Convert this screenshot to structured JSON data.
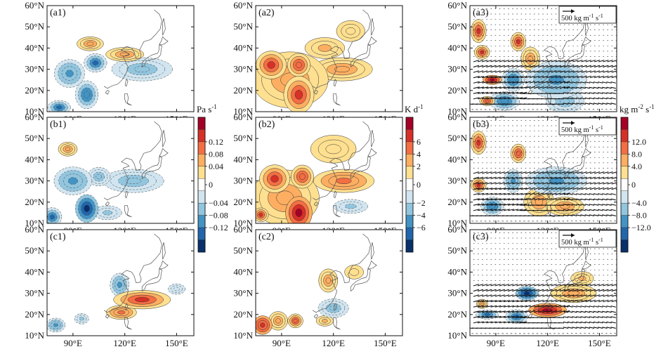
{
  "chart_data": {
    "type": "heatmap",
    "grid": "3x3 panels",
    "map": {
      "lon_range": [
        75,
        160
      ],
      "lat_range": [
        10,
        60
      ],
      "lat_ticks": [
        "60°N",
        "50°N",
        "40°N",
        "30°N",
        "20°N",
        "10°N"
      ],
      "lon_ticks": [
        "90°E",
        "120°E",
        "150°E"
      ]
    },
    "panels": [
      {
        "label": "(a1)",
        "field": "vertical_velocity",
        "blobs": [
          [
            103,
            33,
            6,
            4,
            -0.09
          ],
          [
            88,
            28,
            8,
            6,
            -0.06
          ],
          [
            98,
            18,
            6,
            6,
            -0.08
          ],
          [
            130,
            30,
            16,
            5,
            -0.04
          ],
          [
            120,
            37,
            10,
            3,
            0.05
          ],
          [
            100,
            42,
            7,
            3,
            0.04
          ],
          [
            82,
            12,
            6,
            3,
            -0.1
          ]
        ]
      },
      {
        "label": "(a2)",
        "field": "heating",
        "blobs": [
          [
            100,
            18,
            8,
            8,
            5
          ],
          [
            84,
            32,
            8,
            6,
            5
          ],
          [
            100,
            32,
            6,
            5,
            4
          ],
          [
            125,
            30,
            16,
            5,
            2
          ],
          [
            115,
            40,
            14,
            6,
            1.5
          ],
          [
            95,
            25,
            20,
            12,
            2.5
          ],
          [
            130,
            48,
            10,
            6,
            1
          ]
        ]
      },
      {
        "label": "(a3)",
        "field": "moisture_flux_divergence",
        "vectors": true,
        "blobs": [
          [
            80,
            48,
            4,
            5,
            10
          ],
          [
            82,
            38,
            4,
            3,
            9
          ],
          [
            103,
            43,
            4,
            4,
            10
          ],
          [
            88,
            25,
            5,
            2,
            12
          ],
          [
            110,
            35,
            5,
            5,
            5
          ],
          [
            95,
            15,
            8,
            4,
            -8
          ],
          [
            125,
            25,
            16,
            8,
            -6
          ],
          [
            130,
            15,
            10,
            5,
            -5
          ],
          [
            85,
            15,
            4,
            2,
            8
          ],
          [
            100,
            25,
            6,
            5,
            -8
          ]
        ]
      },
      {
        "label": "(b1)",
        "field": "vertical_velocity",
        "blobs": [
          [
            98,
            17,
            6,
            6,
            -0.12
          ],
          [
            90,
            30,
            10,
            6,
            -0.06
          ],
          [
            105,
            32,
            6,
            4,
            -0.05
          ],
          [
            78,
            13,
            5,
            4,
            -0.1
          ],
          [
            87,
            45,
            5,
            3,
            0.05
          ],
          [
            125,
            30,
            16,
            5,
            -0.04
          ],
          [
            110,
            15,
            10,
            4,
            -0.03
          ]
        ]
      },
      {
        "label": "(b2)",
        "field": "heating",
        "blobs": [
          [
            100,
            15,
            7,
            7,
            6.5
          ],
          [
            86,
            31,
            8,
            6,
            5
          ],
          [
            102,
            32,
            6,
            5,
            4
          ],
          [
            126,
            30,
            16,
            5,
            3
          ],
          [
            92,
            22,
            18,
            12,
            2.5
          ],
          [
            120,
            45,
            16,
            8,
            1
          ],
          [
            130,
            18,
            12,
            4,
            -1.5
          ],
          [
            78,
            14,
            4,
            3,
            5
          ]
        ]
      },
      {
        "label": "(b3)",
        "field": "moisture_flux_divergence",
        "vectors": true,
        "blobs": [
          [
            80,
            48,
            4,
            5,
            10
          ],
          [
            80,
            28,
            4,
            3,
            10
          ],
          [
            103,
            43,
            4,
            4,
            8
          ],
          [
            88,
            18,
            6,
            4,
            -8
          ],
          [
            125,
            30,
            16,
            6,
            -6
          ],
          [
            100,
            30,
            5,
            5,
            -6
          ],
          [
            130,
            18,
            10,
            4,
            5
          ],
          [
            115,
            20,
            8,
            6,
            4
          ]
        ]
      },
      {
        "label": "(c1)",
        "field": "vertical_velocity",
        "blobs": [
          [
            130,
            27,
            15,
            4,
            0.09
          ],
          [
            118,
            21,
            8,
            3,
            0.06
          ],
          [
            117,
            34,
            5,
            5,
            -0.06
          ],
          [
            80,
            15,
            5,
            3,
            -0.06
          ],
          [
            95,
            18,
            5,
            3,
            -0.03
          ],
          [
            150,
            32,
            6,
            3,
            -0.02
          ]
        ]
      },
      {
        "label": "(c2)",
        "field": "heating",
        "blobs": [
          [
            79,
            15,
            5,
            4,
            6
          ],
          [
            88,
            17,
            5,
            4,
            2
          ],
          [
            98,
            17,
            4,
            3,
            4
          ],
          [
            117,
            36,
            5,
            5,
            2.5
          ],
          [
            120,
            23,
            8,
            4,
            -2.5
          ],
          [
            115,
            17,
            6,
            3,
            1.5
          ],
          [
            132,
            40,
            10,
            6,
            0.8
          ]
        ]
      },
      {
        "label": "(c3)",
        "field": "moisture_flux_divergence",
        "vectors": true,
        "blobs": [
          [
            120,
            22,
            10,
            3,
            12
          ],
          [
            108,
            30,
            6,
            3,
            -12
          ],
          [
            85,
            20,
            6,
            2,
            -9
          ],
          [
            102,
            19,
            6,
            3,
            -9
          ],
          [
            135,
            30,
            12,
            4,
            4
          ],
          [
            140,
            37,
            8,
            4,
            3
          ],
          [
            82,
            25,
            3,
            2,
            5
          ]
        ]
      }
    ],
    "colorbars": [
      {
        "unit": "Pa s-1",
        "unit_base": "Pa s",
        "unit_exp": "-1",
        "ticks": [
          "0.12",
          "0.08",
          "0.04",
          "0",
          "−0.04",
          "−0.08",
          "−0.12"
        ],
        "levels": [
          0.12,
          0.08,
          0.04,
          0,
          -0.04,
          -0.08,
          -0.12
        ]
      },
      {
        "unit": "K d-1",
        "unit_base": "K d",
        "unit_exp": "-1",
        "ticks": [
          "6",
          "4",
          "2",
          "0",
          "−2",
          "−4",
          "−6"
        ],
        "levels": [
          6,
          4,
          2,
          0,
          -2,
          -4,
          -6
        ]
      },
      {
        "unit": "kg m-2 s-1",
        "unit_base": "kg m",
        "unit_exp1": "-2",
        "unit_mid": " s",
        "unit_exp2": "-1",
        "ticks": [
          "12.0",
          "8.0",
          "4.0",
          "0",
          "−4.0",
          "−8.0",
          "−12.0"
        ],
        "levels": [
          12,
          8,
          4,
          0,
          -4,
          -8,
          -12
        ]
      }
    ],
    "reference_vector": {
      "label_base": "500 kg m",
      "exp1": "-1",
      "mid": " s",
      "exp2": "-1",
      "value": 500
    }
  },
  "colors": {
    "diverging": [
      "#08306b",
      "#2166ac",
      "#4393c3",
      "#92c5de",
      "#d1e5f0",
      "#ffffff",
      "#fee090",
      "#fdae61",
      "#f46d43",
      "#d73027",
      "#a50026"
    ]
  }
}
